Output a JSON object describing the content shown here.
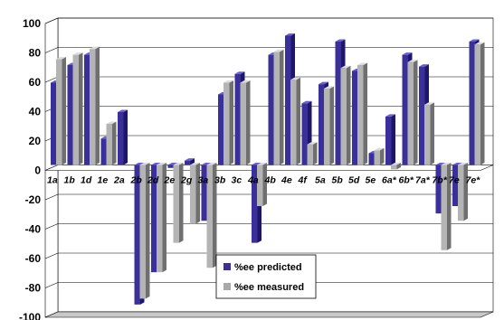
{
  "chart_data": {
    "type": "bar",
    "style": "3d-clustered-column",
    "categories": [
      "1a",
      "1b",
      "1d",
      "1e",
      "2a",
      "2b",
      "2d",
      "2e",
      "2g",
      "3a",
      "3b",
      "3c",
      "4a",
      "4b",
      "4e",
      "4f",
      "5a",
      "5b",
      "5d",
      "5e",
      "6a*",
      "6b*",
      "7a*",
      "7b*",
      "7e",
      "7e*"
    ],
    "series": [
      {
        "name": "%ee predicted",
        "color": "#3b2f9a",
        "values": [
          56,
          68,
          75,
          18,
          36,
          -95,
          -73,
          -2,
          3,
          -38,
          48,
          62,
          -53,
          75,
          88,
          42,
          55,
          84,
          64,
          8,
          33,
          75,
          67,
          -33,
          -28,
          84
        ]
      },
      {
        "name": "%ee measured",
        "color": "#a8a8a8",
        "values": [
          72,
          75,
          79,
          28,
          null,
          -91,
          -73,
          -53,
          -40,
          -70,
          56,
          56,
          -28,
          77,
          58,
          14,
          52,
          66,
          68,
          10,
          -3,
          70,
          41,
          -58,
          -38,
          82
        ]
      }
    ],
    "ylim": [
      -100,
      100
    ],
    "yticks": [
      100,
      80,
      60,
      40,
      20,
      0,
      -20,
      -40,
      -60,
      -80,
      -100
    ],
    "grid": true,
    "legend_position": "bottom-center",
    "title": "",
    "xlabel": "",
    "ylabel": ""
  }
}
